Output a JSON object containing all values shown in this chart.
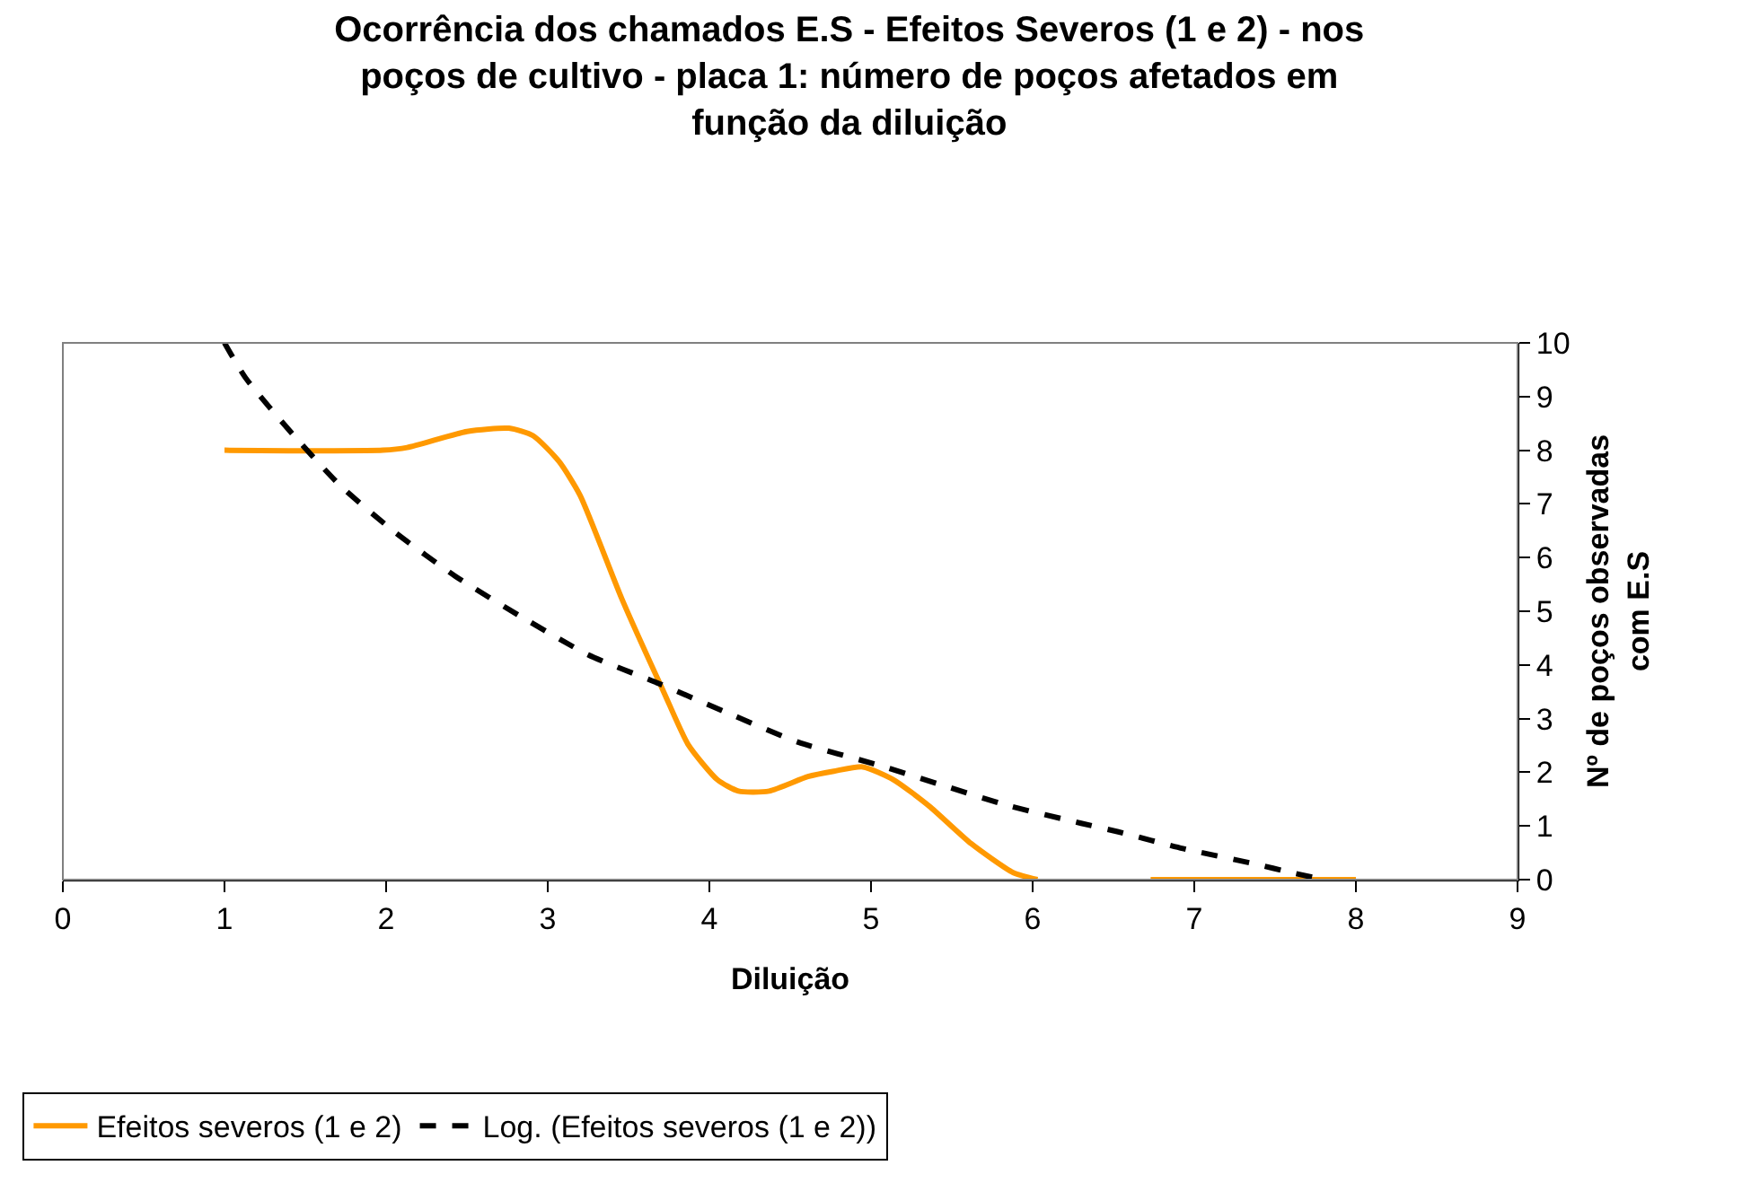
{
  "chart_data": {
    "type": "line",
    "title": "Ocorrência dos chamados E.S - Efeitos Severos (1 e 2) - nos\npoços de cultivo - placa 1: número de poços afetados em\nfunção da diluição",
    "xlabel": "Diluição",
    "ylabel": "Nº de poços observadas\ncom E.S",
    "xlim": [
      0,
      9
    ],
    "xticks": [
      0,
      1,
      2,
      3,
      4,
      5,
      6,
      7,
      8,
      9
    ],
    "ylim": [
      0,
      10
    ],
    "yticks": [
      0,
      1,
      2,
      3,
      4,
      5,
      6,
      7,
      8,
      9,
      10
    ],
    "grid": false,
    "legend": "bottom",
    "marker": "none",
    "series": [
      {
        "name": "Efeitos severos (1 e 2)",
        "color": "#ff9900",
        "line_style": "solid",
        "x": [
          1,
          1.98,
          2.13,
          2.5,
          2.76,
          2.91,
          3.07,
          3.2,
          3.46,
          3.72,
          3.87,
          4.05,
          4.18,
          4.37,
          4.61,
          4.77,
          4.95,
          5.14,
          5.36,
          5.62,
          5.88,
          6.03,
          6.4,
          6.73,
          7,
          8
        ],
        "values": [
          8,
          8,
          8.05,
          8.35,
          8.41,
          8.27,
          7.79,
          7.16,
          5.22,
          3.48,
          2.51,
          1.86,
          1.65,
          1.65,
          1.92,
          2.02,
          2.1,
          1.86,
          1.37,
          0.67,
          0.13,
          0,
          null,
          0,
          0,
          0
        ]
      },
      {
        "name": "Log. (Efeitos severos (1 e 2))",
        "color": "#000000",
        "line_style": "dashed",
        "x": [
          1,
          1.13,
          1.43,
          1.72,
          2.06,
          2.43,
          2.84,
          3.25,
          3.69,
          4.14,
          4.55,
          5.05,
          5.45,
          5.86,
          6.3,
          6.53,
          6.93,
          7.38,
          7.6,
          7.8
        ],
        "values": [
          10,
          9.35,
          8.27,
          7.33,
          6.46,
          5.65,
          4.89,
          4.19,
          3.65,
          3.07,
          2.56,
          2.13,
          1.75,
          1.37,
          1.05,
          0.89,
          0.58,
          0.29,
          0.13,
          0
        ]
      }
    ]
  }
}
